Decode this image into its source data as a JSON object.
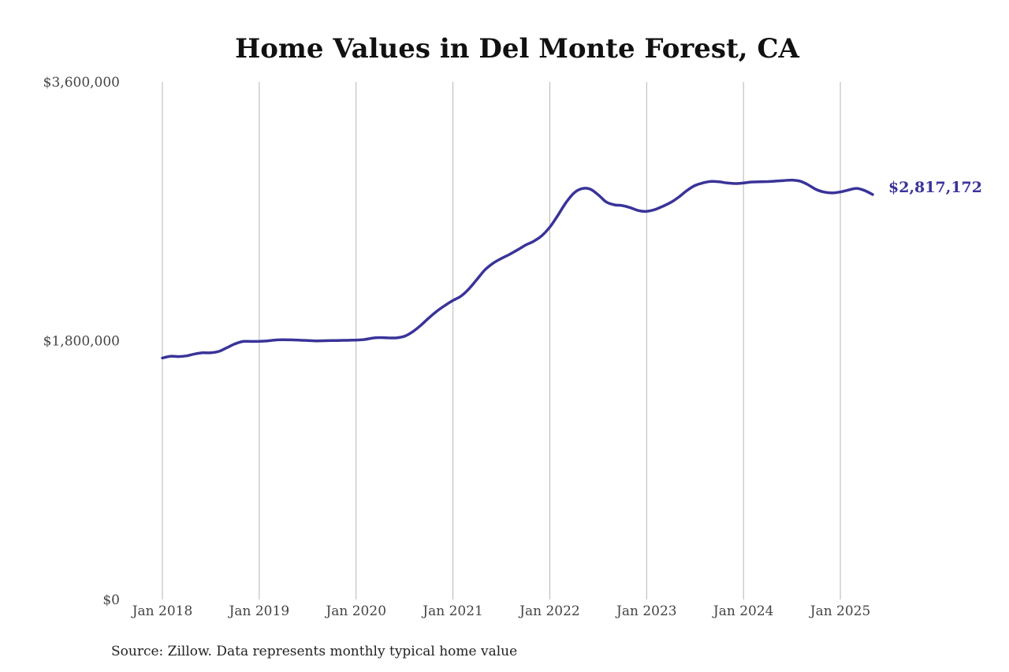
{
  "chart_data": {
    "type": "line",
    "title": "Home Values in Del Monte Forest, CA",
    "xlabel": "",
    "ylabel": "",
    "ylim": [
      0,
      3600000
    ],
    "yticks": [
      {
        "value": 0,
        "label": "$0"
      },
      {
        "value": 1800000,
        "label": "$1,800,000"
      },
      {
        "value": 3600000,
        "label": "$3,600,000"
      }
    ],
    "xticks": [
      {
        "value": "2018-01",
        "label": "Jan 2018"
      },
      {
        "value": "2019-01",
        "label": "Jan 2019"
      },
      {
        "value": "2020-01",
        "label": "Jan 2020"
      },
      {
        "value": "2021-01",
        "label": "Jan 2021"
      },
      {
        "value": "2022-01",
        "label": "Jan 2022"
      },
      {
        "value": "2023-01",
        "label": "Jan 2023"
      },
      {
        "value": "2024-01",
        "label": "Jan 2024"
      },
      {
        "value": "2025-01",
        "label": "Jan 2025"
      }
    ],
    "xlim": [
      "2018-01",
      "2025-05"
    ],
    "grid": "vertical",
    "line_color": "#3a3399",
    "series": [
      {
        "x": [
          "2018-01",
          "2018-02",
          "2018-03",
          "2018-04",
          "2018-05",
          "2018-06",
          "2018-07",
          "2018-08",
          "2018-09",
          "2018-10",
          "2018-11",
          "2018-12",
          "2019-01",
          "2019-02",
          "2019-03",
          "2019-04",
          "2019-05",
          "2019-06",
          "2019-07",
          "2019-08",
          "2019-09",
          "2019-10",
          "2019-11",
          "2019-12",
          "2020-01",
          "2020-02",
          "2020-03",
          "2020-04",
          "2020-05",
          "2020-06",
          "2020-07",
          "2020-08",
          "2020-09",
          "2020-10",
          "2020-11",
          "2020-12",
          "2021-01",
          "2021-02",
          "2021-03",
          "2021-04",
          "2021-05",
          "2021-06",
          "2021-07",
          "2021-08",
          "2021-09",
          "2021-10",
          "2021-11",
          "2021-12",
          "2022-01",
          "2022-02",
          "2022-03",
          "2022-04",
          "2022-05",
          "2022-06",
          "2022-07",
          "2022-08",
          "2022-09",
          "2022-10",
          "2022-11",
          "2022-12",
          "2023-01",
          "2023-02",
          "2023-03",
          "2023-04",
          "2023-05",
          "2023-06",
          "2023-07",
          "2023-08",
          "2023-09",
          "2023-10",
          "2023-11",
          "2023-12",
          "2024-01",
          "2024-02",
          "2024-03",
          "2024-04",
          "2024-05",
          "2024-06",
          "2024-07",
          "2024-08",
          "2024-09",
          "2024-10",
          "2024-11",
          "2024-12",
          "2025-01",
          "2025-02",
          "2025-03",
          "2025-04",
          "2025-05"
        ],
        "values": [
          1680000,
          1692000,
          1690000,
          1695000,
          1708000,
          1716000,
          1716000,
          1726000,
          1752000,
          1778000,
          1795000,
          1795000,
          1796000,
          1799000,
          1805000,
          1807000,
          1806000,
          1804000,
          1801000,
          1799000,
          1800000,
          1801000,
          1802000,
          1803000,
          1805000,
          1808000,
          1818000,
          1822000,
          1820000,
          1820000,
          1831000,
          1862000,
          1906000,
          1958000,
          2005000,
          2045000,
          2080000,
          2110000,
          2162000,
          2228000,
          2295000,
          2340000,
          2372000,
          2400000,
          2432000,
          2465000,
          2492000,
          2530000,
          2590000,
          2672000,
          2760000,
          2828000,
          2858000,
          2855000,
          2815000,
          2765000,
          2745000,
          2740000,
          2725000,
          2705000,
          2700000,
          2712000,
          2735000,
          2762000,
          2800000,
          2845000,
          2880000,
          2898000,
          2908000,
          2905000,
          2897000,
          2893000,
          2897000,
          2904000,
          2905000,
          2907000,
          2910000,
          2914000,
          2917000,
          2910000,
          2885000,
          2852000,
          2834000,
          2828000,
          2835000,
          2848000,
          2860000,
          2845000,
          2817172
        ]
      }
    ],
    "end_label": "$2,817,172",
    "source": "Source: Zillow. Data represents monthly typical home value"
  }
}
